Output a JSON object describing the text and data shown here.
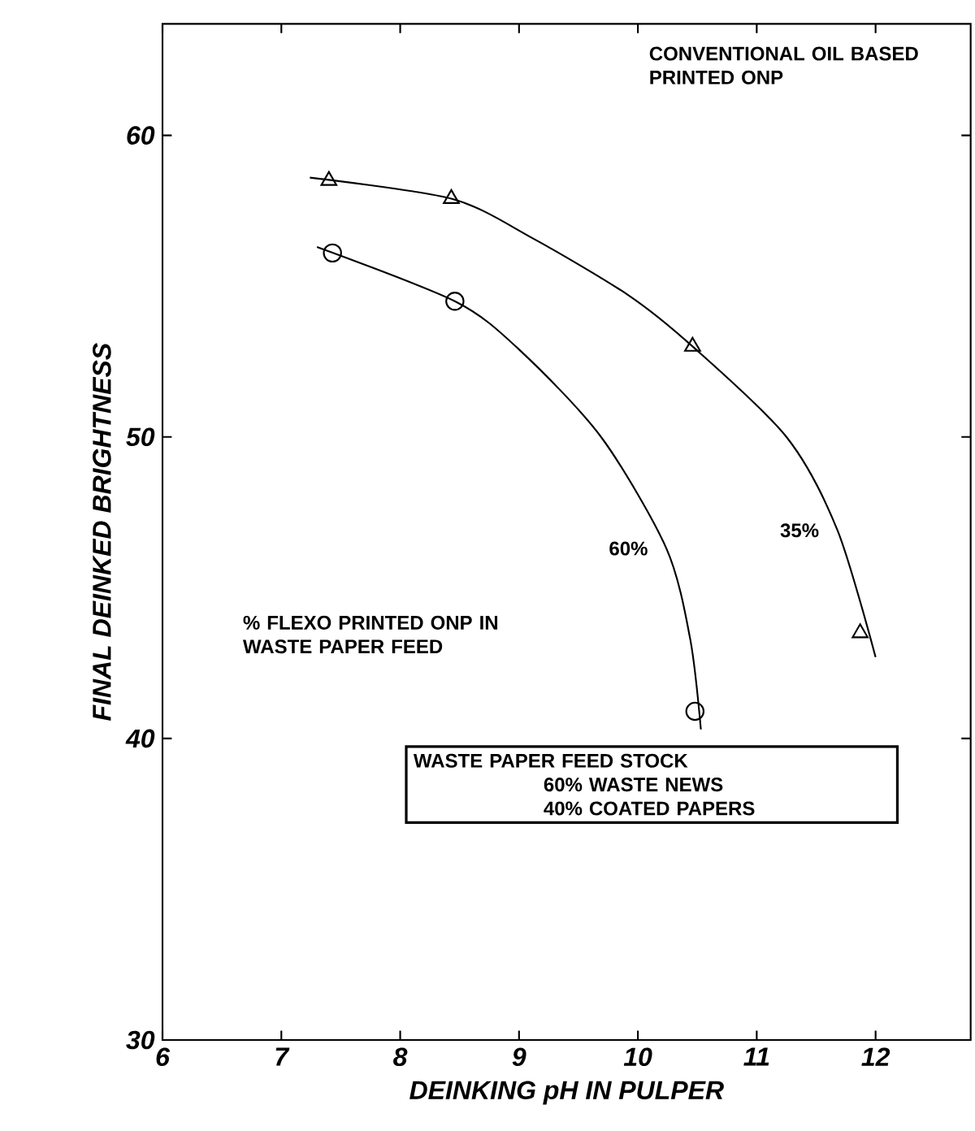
{
  "chart_data": {
    "type": "scatter",
    "xlabel": "DEINKING pH IN PULPER",
    "ylabel": "FINAL DEINKED BRIGHTNESS",
    "xlim": [
      6,
      12.8
    ],
    "ylim": [
      30,
      63.7
    ],
    "xticks": [
      6,
      7,
      8,
      9,
      10,
      11,
      12
    ],
    "yticks": [
      30,
      40,
      50,
      60
    ],
    "grid": false,
    "annotations": [
      "CONVENTIONAL OIL BASED PRINTED ONP",
      "% FLEXO PRINTED ONP IN WASTE PAPER FEED",
      "WASTE PAPER FEED STOCK",
      "60% WASTE NEWS",
      "40% COATED PAPERS"
    ],
    "series": [
      {
        "marker": "triangle",
        "color": "#000000",
        "x": [
          7.4,
          8.43,
          10.46,
          11.87
        ],
        "values": [
          58.5,
          57.9,
          53.0,
          43.5
        ]
      },
      {
        "name": "35%",
        "type": "line",
        "marker": "none",
        "color": "#000000",
        "x": [
          7.24,
          8.43,
          9.11,
          9.92,
          10.46,
          11.25,
          11.68,
          12.0
        ],
        "values": [
          58.6,
          57.9,
          56.6,
          54.7,
          53.0,
          50.0,
          46.9,
          42.7
        ]
      },
      {
        "marker": "circle",
        "color": "#000000",
        "x": [
          7.43,
          8.46,
          10.48
        ],
        "values": [
          56.1,
          54.5,
          40.9
        ]
      },
      {
        "name": "60%",
        "type": "line",
        "marker": "none",
        "color": "#000000",
        "x": [
          7.3,
          8.46,
          9.0,
          9.69,
          10.24,
          10.44,
          10.53
        ],
        "values": [
          56.3,
          54.5,
          52.9,
          50.0,
          46.3,
          43.3,
          40.3
        ]
      }
    ]
  }
}
